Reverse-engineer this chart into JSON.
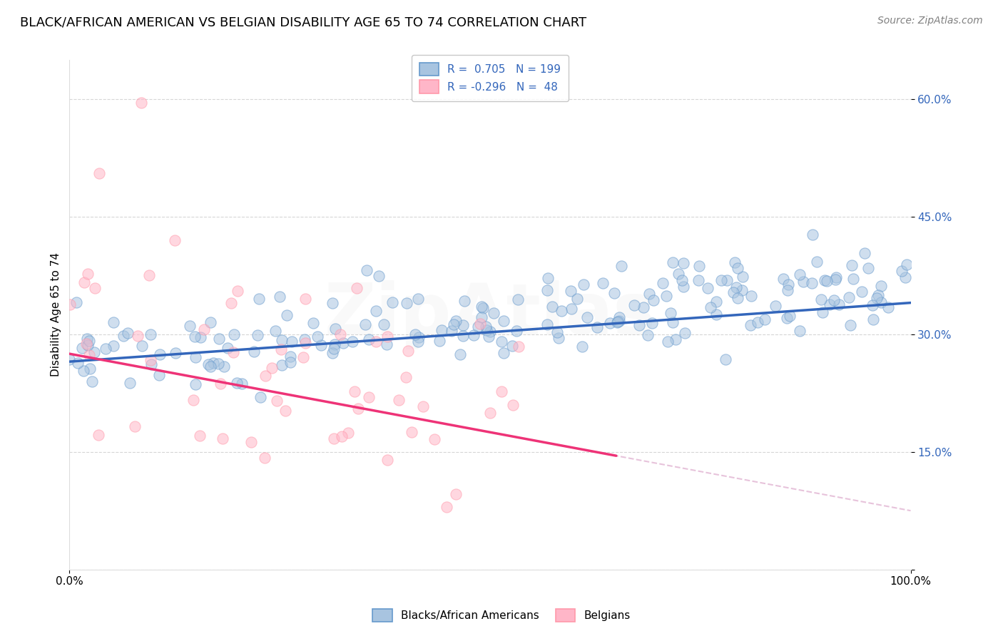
{
  "title": "BLACK/AFRICAN AMERICAN VS BELGIAN DISABILITY AGE 65 TO 74 CORRELATION CHART",
  "source": "Source: ZipAtlas.com",
  "ylabel": "Disability Age 65 to 74",
  "xlim": [
    0.0,
    1.0
  ],
  "ylim": [
    0.0,
    0.65
  ],
  "yticks": [
    0.0,
    0.15,
    0.3,
    0.45,
    0.6
  ],
  "xticks": [
    0.0,
    1.0
  ],
  "xticklabels": [
    "0.0%",
    "100.0%"
  ],
  "blue_R": 0.705,
  "blue_N": 199,
  "pink_R": -0.296,
  "pink_N": 48,
  "blue_dot_color": "#A8C4E0",
  "blue_edge_color": "#6699CC",
  "pink_dot_color": "#FFB6C8",
  "pink_edge_color": "#FF99AA",
  "blue_line_color": "#3366BB",
  "pink_line_color": "#EE3377",
  "pink_dash_color": "#DDAACC",
  "legend_blue_label": "Blacks/African Americans",
  "legend_pink_label": "Belgians",
  "background_color": "#FFFFFF",
  "grid_color": "#CCCCCC",
  "title_fontsize": 13,
  "axis_label_fontsize": 11,
  "tick_fontsize": 11,
  "legend_fontsize": 11,
  "source_fontsize": 10,
  "scatter_alpha": 0.55,
  "scatter_size": 120,
  "watermark_text": "ZipAtlas",
  "watermark_alpha": 0.07,
  "blue_line_intercept": 0.265,
  "blue_line_slope": 0.075,
  "pink_line_intercept": 0.275,
  "pink_line_slope": -0.2
}
